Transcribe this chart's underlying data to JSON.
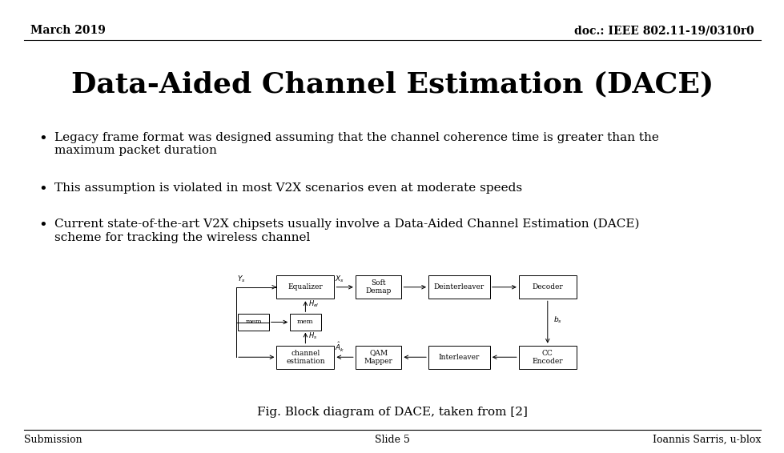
{
  "title": "Data-Aided Channel Estimation (DACE)",
  "header_left": "March 2019",
  "header_right": "doc.: IEEE 802.11-19/0310r0",
  "footer_left": "Submission",
  "footer_center": "Slide 5",
  "footer_right": "Ioannis Sarris, u-blox",
  "bullets": [
    "Legacy frame format was designed assuming that the channel coherence time is greater than the\nmaximum packet duration",
    "This assumption is violated in most V2X scenarios even at moderate speeds",
    "Current state-of-the-art V2X chipsets usually involve a Data-Aided Channel Estimation (DACE)\nscheme for tracking the wireless channel"
  ],
  "fig_caption": "Fig. Block diagram of DACE, taken from [2]",
  "background_color": "#ffffff",
  "text_color": "#000000",
  "title_fontsize": 26,
  "header_fontsize": 10,
  "bullet_fontsize": 11,
  "footer_fontsize": 9,
  "caption_fontsize": 11
}
